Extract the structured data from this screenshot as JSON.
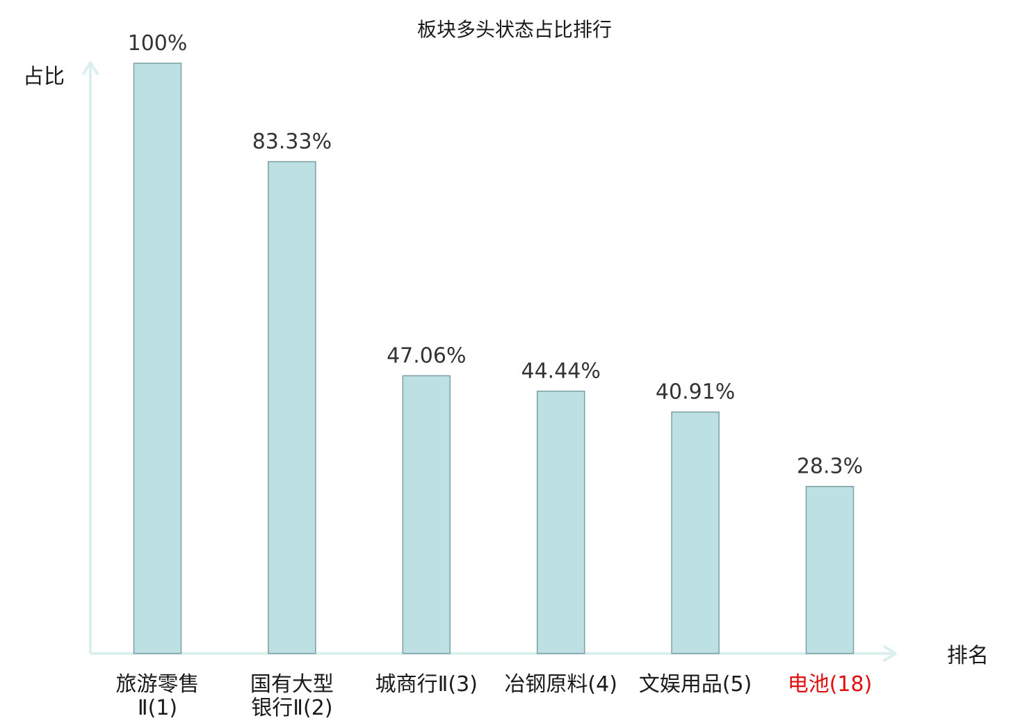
{
  "chart_data": {
    "type": "bar",
    "title": "板块多头状态占比排行",
    "ylabel": "占比",
    "xlabel": "排名",
    "categories": [
      "旅游零售Ⅱ(1)",
      "国有大型银行Ⅱ(2)",
      "城商行Ⅱ(3)",
      "冶钢原料(4)",
      "文娱用品(5)",
      "电池(18)"
    ],
    "category_lines": [
      [
        "旅游零售",
        "Ⅱ(1)"
      ],
      [
        "国有大型",
        "银行Ⅱ(2)"
      ],
      [
        "城商行Ⅱ(3)"
      ],
      [
        "冶钢原料(4)"
      ],
      [
        "文娱用品(5)"
      ],
      [
        "电池(18)"
      ]
    ],
    "highlight_index": 5,
    "values": [
      100,
      83.33,
      47.06,
      44.44,
      40.91,
      28.3
    ],
    "value_labels": [
      "100%",
      "83.33%",
      "47.06%",
      "44.44%",
      "40.91%",
      "28.3%"
    ],
    "ylim": [
      0,
      100
    ],
    "grid": false,
    "legend": "none",
    "colors": {
      "bar_fill": "#bde0e3",
      "bar_stroke": "#7d9ea3",
      "axis": "#dcefef",
      "highlight_text": "#e01010"
    }
  }
}
